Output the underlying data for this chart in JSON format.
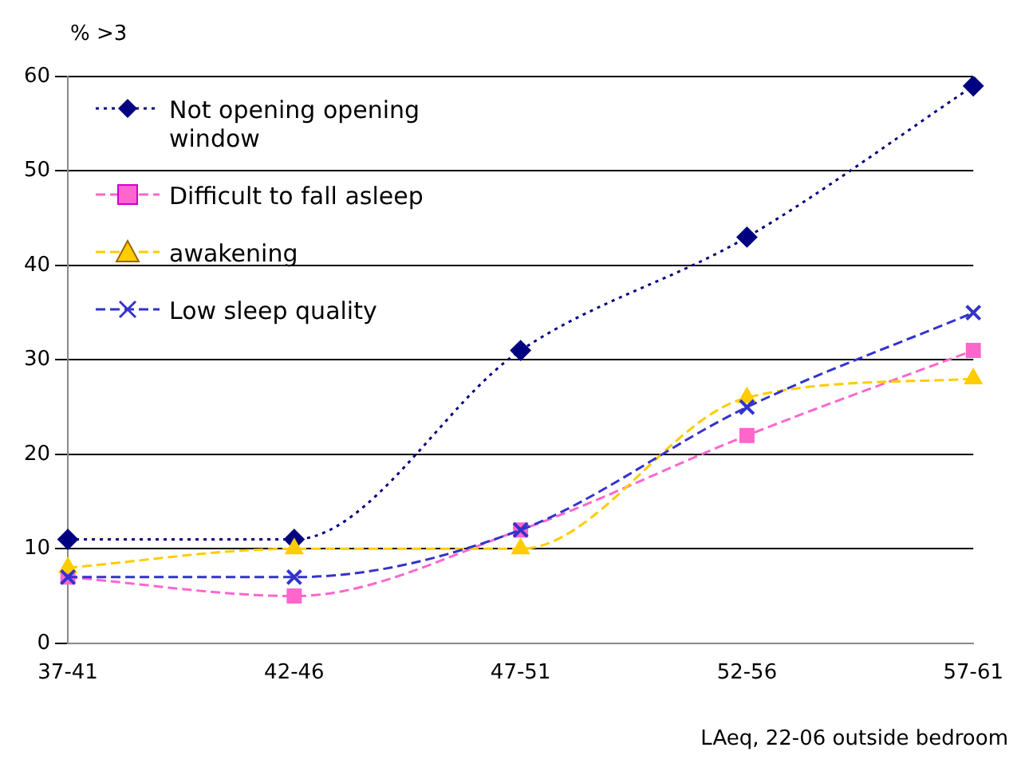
{
  "chart_data": {
    "type": "line",
    "ylabel": "% >3",
    "xlabel": "LAeq, 22-06 outside bedroom",
    "categories": [
      "37-41",
      "42-46",
      "47-51",
      "52-56",
      "57-61"
    ],
    "ylim": [
      0,
      60
    ],
    "yticks": [
      0,
      10,
      20,
      30,
      40,
      50,
      60
    ],
    "grid": "y",
    "legend": "top left",
    "series": [
      {
        "name": "Not opening opening window",
        "color": "#000080",
        "marker": "diamond",
        "line_style": "dotted",
        "values": [
          11,
          11,
          31,
          43,
          59
        ]
      },
      {
        "name": "Difficult to fall asleep",
        "color": "#ff66cc",
        "marker": "square",
        "line_style": "dashed",
        "values": [
          7,
          5,
          12,
          22,
          31
        ]
      },
      {
        "name": "awakening",
        "color": "#ffcc00",
        "marker": "triangle",
        "line_style": "dashed",
        "values": [
          8,
          10,
          10,
          26,
          28
        ]
      },
      {
        "name": "Low sleep quality",
        "color": "#3333cc",
        "marker": "cross",
        "line_style": "dashed",
        "values": [
          7,
          7,
          12,
          25,
          35
        ]
      }
    ]
  }
}
